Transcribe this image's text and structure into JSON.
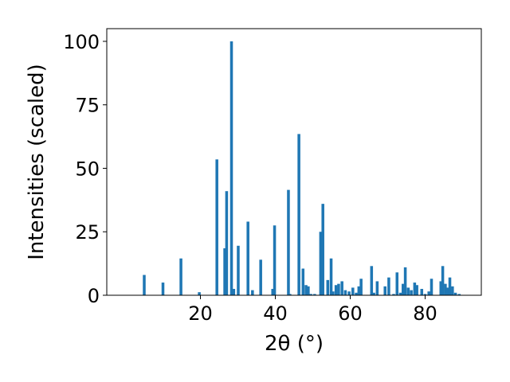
{
  "chart_data": {
    "type": "bar",
    "xlabel": "2θ (°)",
    "ylabel": "Intensities (scaled)",
    "xlim": [
      -5,
      95
    ],
    "ylim": [
      0,
      105
    ],
    "xticks": [
      20,
      40,
      60,
      80
    ],
    "yticks": [
      0,
      25,
      50,
      75,
      100
    ],
    "bar_width": 0.75,
    "color": "#1f77b4",
    "x": [
      5.0,
      10.0,
      14.8,
      19.7,
      24.4,
      26.5,
      27.0,
      28.3,
      28.9,
      30.1,
      32.7,
      33.9,
      36.1,
      39.3,
      39.8,
      43.5,
      43.9,
      46.3,
      47.4,
      48.2,
      48.8,
      49.5,
      50.5,
      52.1,
      52.7,
      54.0,
      54.9,
      55.4,
      56.2,
      56.9,
      57.8,
      58.7,
      59.7,
      60.7,
      61.6,
      62.3,
      62.9,
      65.7,
      66.3,
      67.2,
      69.3,
      70.3,
      71.6,
      72.5,
      73.4,
      74.1,
      74.7,
      75.5,
      76.3,
      77.2,
      77.8,
      79.1,
      80.0,
      81.0,
      81.7,
      84.2,
      84.7,
      85.4,
      86.0,
      86.6,
      87.3,
      88.1,
      89.1
    ],
    "values": [
      8,
      5,
      14.5,
      1.2,
      53.5,
      18.5,
      41,
      100,
      2.5,
      19.5,
      29,
      2,
      14,
      2.5,
      27.5,
      41.5,
      0.5,
      63.5,
      10.5,
      4,
      3.5,
      0.5,
      0.5,
      25,
      36,
      6,
      14.5,
      1.5,
      4,
      4.5,
      5.5,
      2,
      1.5,
      3,
      1,
      3.5,
      6.5,
      11.5,
      1,
      5.5,
      3.5,
      7,
      0.5,
      9,
      1,
      4.5,
      11,
      3,
      2,
      5,
      4,
      2.5,
      0.5,
      1.5,
      6.5,
      5.5,
      11.5,
      4.5,
      3,
      7,
      3.5,
      1,
      0.5
    ]
  }
}
